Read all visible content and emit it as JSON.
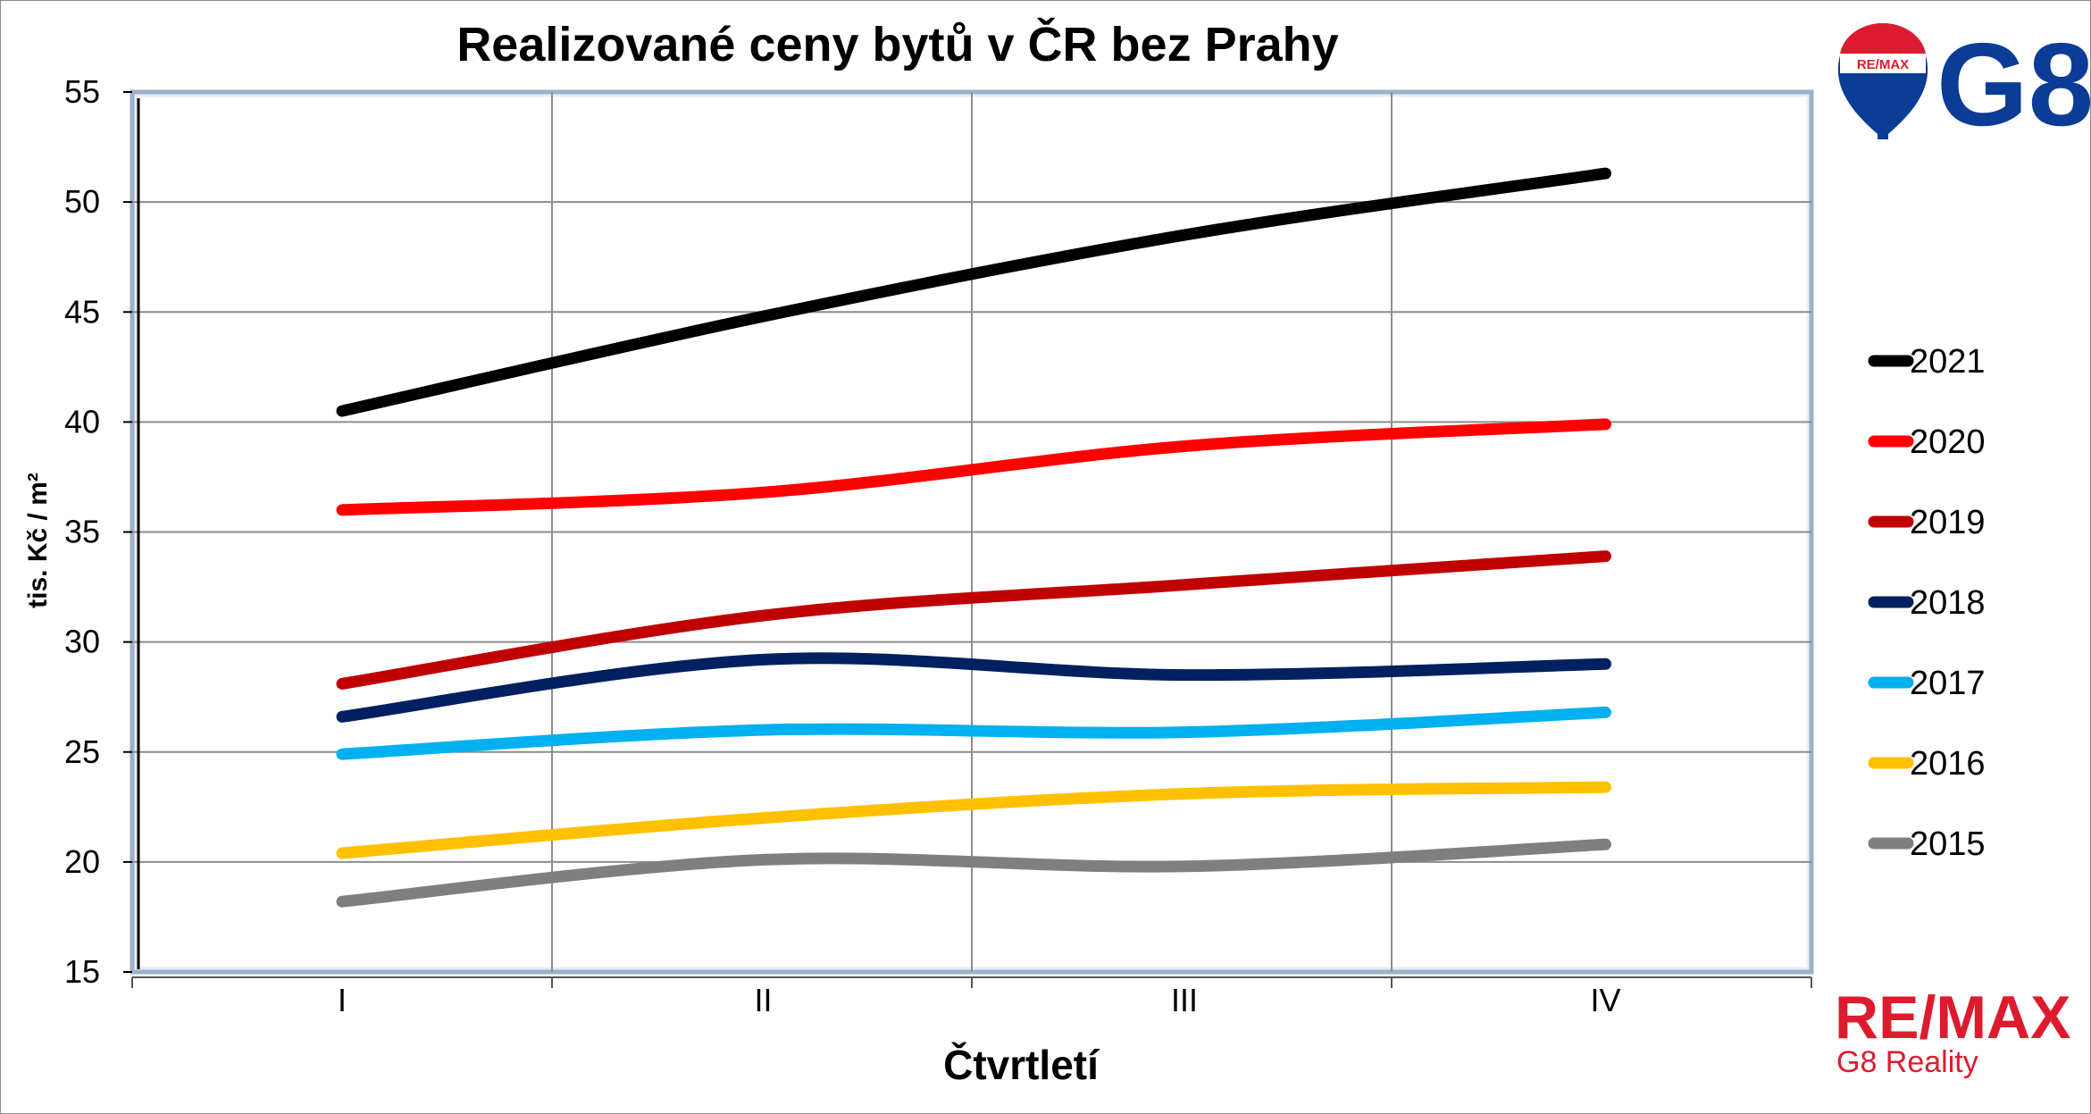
{
  "chart_data": {
    "type": "line",
    "title": "Realizované ceny bytů v ČR bez Prahy",
    "xlabel": "Čtvrtletí",
    "ylabel": "tis. Kč / m²",
    "categories": [
      "I",
      "II",
      "III",
      "IV"
    ],
    "ylim": [
      15,
      55
    ],
    "yticks": [
      "15",
      "20",
      "25",
      "30",
      "35",
      "40",
      "45",
      "50",
      "55"
    ],
    "grid": true,
    "legend_position": "right",
    "series": [
      {
        "name": "2021",
        "color": "#000000",
        "values": [
          40.5,
          44.8,
          48.5,
          51.3
        ]
      },
      {
        "name": "2020",
        "color": "#ff0000",
        "values": [
          36.0,
          36.8,
          38.9,
          39.9
        ]
      },
      {
        "name": "2019",
        "color": "#c00000",
        "values": [
          28.1,
          31.2,
          32.6,
          33.9
        ]
      },
      {
        "name": "2018",
        "color": "#002060",
        "values": [
          26.6,
          29.2,
          28.5,
          29.0
        ]
      },
      {
        "name": "2017",
        "color": "#00b0f0",
        "values": [
          24.9,
          26.0,
          25.9,
          26.8
        ]
      },
      {
        "name": "2016",
        "color": "#ffc000",
        "values": [
          20.4,
          22.0,
          23.1,
          23.4
        ]
      },
      {
        "name": "2015",
        "color": "#7f7f7f",
        "values": [
          18.2,
          20.1,
          19.8,
          20.8
        ]
      }
    ]
  },
  "logos": {
    "remax_text": "RE/MAX",
    "remax_sub": "G8 Reality",
    "balloon_text": "RE/MAX",
    "g8_text": "G8",
    "brand_red": "#dc1c2e",
    "brand_blue": "#0b3c96"
  }
}
